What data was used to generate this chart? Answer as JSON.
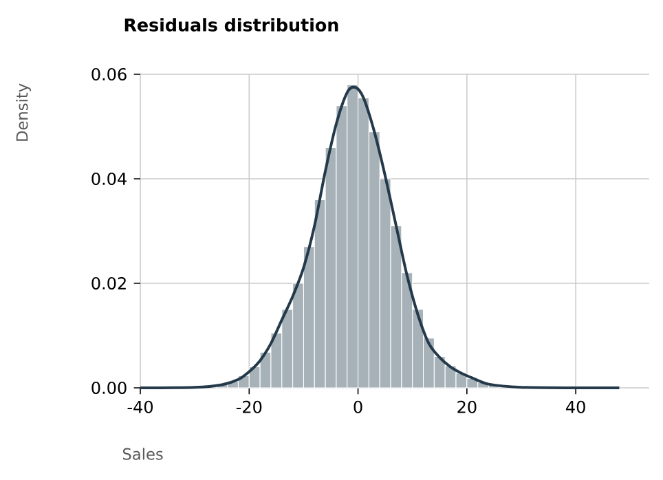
{
  "chart_data": {
    "type": "histogram",
    "title": "Residuals distribution",
    "xlabel": "Sales",
    "ylabel": "Density",
    "bins": [
      -26,
      -24,
      -22,
      -20,
      -18,
      -16,
      -14,
      -12,
      -10,
      -8,
      -6,
      -4,
      -2,
      0,
      2,
      4,
      6,
      8,
      10,
      12,
      14,
      16,
      18,
      20,
      22,
      24,
      26
    ],
    "values": [
      0.0006,
      0.0012,
      0.0023,
      0.004,
      0.0068,
      0.0105,
      0.015,
      0.02,
      0.027,
      0.036,
      0.046,
      0.054,
      0.058,
      0.0555,
      0.049,
      0.04,
      0.031,
      0.022,
      0.015,
      0.0095,
      0.006,
      0.0042,
      0.0028,
      0.0018,
      0.001,
      0.0006
    ],
    "color": "#a7b1b8",
    "series": [
      {
        "type": "line",
        "color": "#243a4b",
        "x": [
          -40,
          -30,
          -25,
          -22,
          -20,
          -18,
          -16,
          -14,
          -12,
          -10,
          -8,
          -6,
          -4,
          -2,
          -0.5,
          1,
          3,
          5,
          7,
          9,
          11,
          13,
          15,
          17,
          19,
          21,
          24,
          30,
          40,
          48
        ],
        "values": [
          0,
          0.0001,
          0.0006,
          0.0016,
          0.0031,
          0.0052,
          0.0085,
          0.013,
          0.0175,
          0.023,
          0.031,
          0.0415,
          0.0505,
          0.0565,
          0.0575,
          0.0555,
          0.049,
          0.0405,
          0.031,
          0.0215,
          0.014,
          0.0085,
          0.0058,
          0.004,
          0.0028,
          0.0019,
          0.0007,
          0.0001,
          0,
          0
        ]
      }
    ],
    "xlim": [
      -40,
      53.5
    ],
    "ylim": [
      0,
      0.06
    ],
    "xticks": [
      -40,
      -20,
      0,
      20,
      40
    ],
    "yticks": [
      {
        "value": 0,
        "label": "0.00"
      },
      0.02,
      0.04,
      0.06
    ],
    "grid": true
  }
}
